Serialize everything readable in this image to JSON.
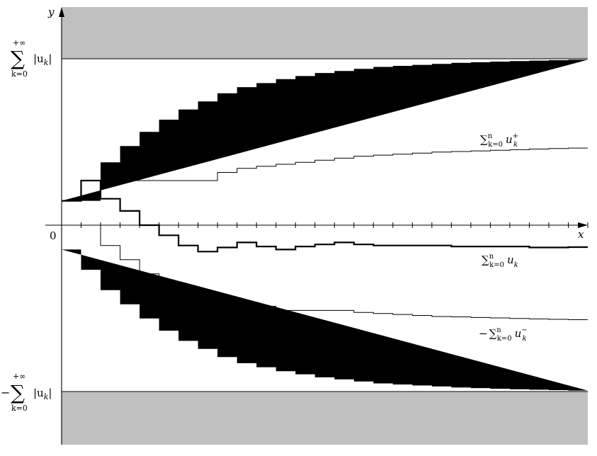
{
  "axes": {
    "x_label": "x",
    "y_label": "y",
    "origin_label": "0"
  },
  "bounds": {
    "upper": {
      "sign": "",
      "sum_top": "+∞",
      "sum_symbol": "∑",
      "sum_bottom": "k=0",
      "term": "|u",
      "term_sub": "k",
      "term_end": "|"
    },
    "lower": {
      "sign": "−",
      "sum_top": "+∞",
      "sum_symbol": "∑",
      "sum_bottom": "k=0",
      "term": "|u",
      "term_sub": "k",
      "term_end": "|"
    }
  },
  "curve_labels": {
    "positive": {
      "prefix": "",
      "sum": "∑",
      "sub": "k=0",
      "sup": "n",
      "term": "u",
      "term_sup": "+",
      "term_sub": "k"
    },
    "partial": {
      "prefix": "",
      "sum": "∑",
      "sub": "k=0",
      "sup": "n",
      "term": "u",
      "term_sub": "k"
    },
    "negative": {
      "prefix": "−",
      "sum": "∑",
      "sub": "k=0",
      "sup": "n",
      "term": "u",
      "term_sup": "−",
      "term_sub": "k"
    }
  },
  "chart_data": {
    "type": "line",
    "step": true,
    "bound": 8.2,
    "ylim": [
      -10.8,
      10.8
    ],
    "xlim": [
      0,
      27
    ],
    "x": [
      0,
      1,
      2,
      3,
      4,
      5,
      6,
      7,
      8,
      9,
      10,
      11,
      12,
      13,
      14,
      15,
      16,
      17,
      18,
      19,
      20,
      21,
      22,
      23,
      24,
      25,
      26,
      27
    ],
    "series": [
      {
        "name": "sum_pos_dashed",
        "style": "dashed",
        "values": [
          1.2,
          1.2,
          3.1,
          3.9,
          4.6,
          5.2,
          5.7,
          6.1,
          6.5,
          6.8,
          7.0,
          7.2,
          7.35,
          7.5,
          7.6,
          7.7,
          7.8,
          7.85,
          7.9,
          7.95,
          8.0,
          8.03,
          8.06,
          8.09,
          8.11,
          8.13,
          8.15,
          8.15
        ]
      },
      {
        "name": "sum_u_plus",
        "style": "thin",
        "values": [
          1.2,
          2.2,
          2.2,
          2.2,
          2.2,
          2.2,
          2.2,
          2.2,
          2.6,
          2.8,
          2.9,
          3.0,
          3.1,
          3.2,
          3.3,
          3.4,
          3.45,
          3.5,
          3.55,
          3.6,
          3.63,
          3.66,
          3.69,
          3.72,
          3.75,
          3.78,
          3.8,
          3.8
        ]
      },
      {
        "name": "sum_u",
        "style": "thick",
        "values": [
          1.2,
          2.2,
          1.3,
          0.7,
          0.0,
          -0.5,
          -1.0,
          -1.3,
          -1.1,
          -0.85,
          -1.05,
          -1.2,
          -1.05,
          -0.95,
          -0.85,
          -0.95,
          -1.0,
          -1.0,
          -1.0,
          -1.0,
          -1.05,
          -1.05,
          -1.05,
          -1.05,
          -1.1,
          -1.1,
          -1.08,
          -1.08
        ]
      },
      {
        "name": "minus_sum_u_minus",
        "style": "thin",
        "values": [
          0.0,
          0.0,
          -1.0,
          -1.7,
          -2.4,
          -2.9,
          -3.4,
          -3.9,
          -3.9,
          -3.9,
          -4.0,
          -4.2,
          -4.2,
          -4.2,
          -4.2,
          -4.3,
          -4.35,
          -4.4,
          -4.45,
          -4.5,
          -4.52,
          -4.55,
          -4.57,
          -4.6,
          -4.62,
          -4.64,
          -4.66,
          -4.66
        ]
      },
      {
        "name": "sum_neg_dashed",
        "style": "dashed",
        "values": [
          -1.2,
          -2.2,
          -3.2,
          -3.9,
          -4.6,
          -5.2,
          -5.7,
          -6.1,
          -6.5,
          -6.8,
          -7.0,
          -7.2,
          -7.35,
          -7.5,
          -7.6,
          -7.7,
          -7.8,
          -7.85,
          -7.9,
          -7.95,
          -8.0,
          -8.03,
          -8.06,
          -8.09,
          -8.11,
          -8.13,
          -8.15,
          -8.15
        ]
      }
    ]
  }
}
